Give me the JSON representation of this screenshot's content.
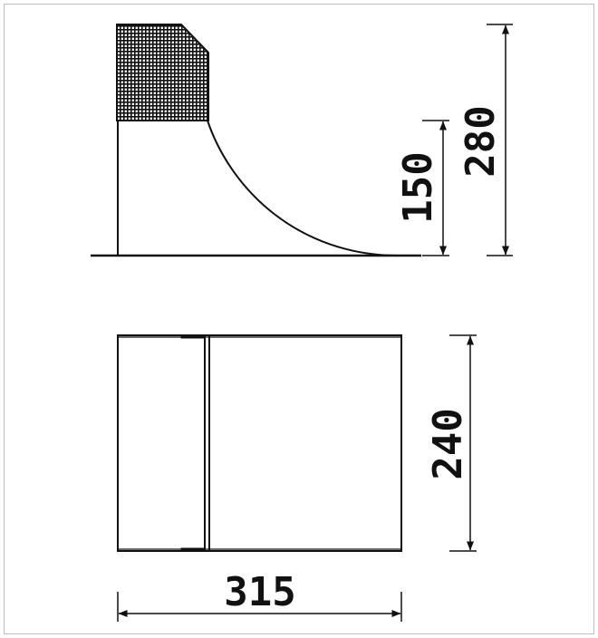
{
  "dimensions": {
    "overall_height": "280",
    "transition_height": "150",
    "width": "240",
    "length": "315"
  },
  "colors": {
    "line": "#111111",
    "frame": "#bdbdbd",
    "background": "#ffffff"
  }
}
